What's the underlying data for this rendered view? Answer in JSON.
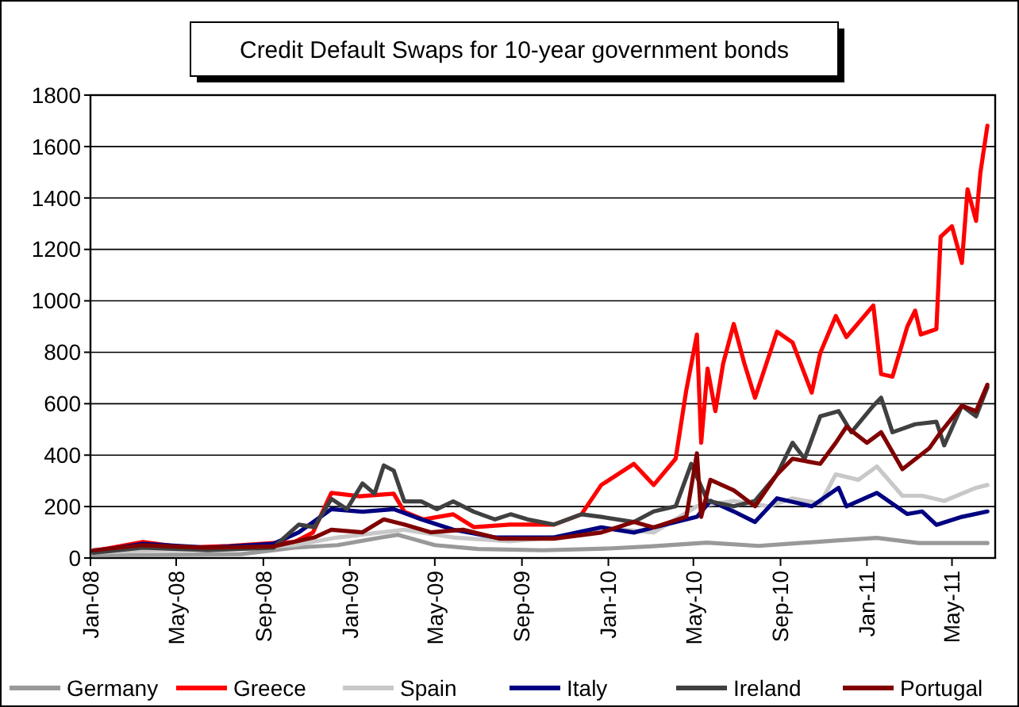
{
  "chart_data": {
    "type": "line",
    "title": "Credit Default Swaps for 10-year government bonds",
    "xlim": [
      "2008-01-01",
      "2011-07-01"
    ],
    "xticks": [
      {
        "value": "2008-01-01",
        "label": "Jan-08"
      },
      {
        "value": "2008-05-01",
        "label": "May-08"
      },
      {
        "value": "2008-09-01",
        "label": "Sep-08"
      },
      {
        "value": "2009-01-01",
        "label": "Jan-09"
      },
      {
        "value": "2009-05-01",
        "label": "May-09"
      },
      {
        "value": "2009-09-01",
        "label": "Sep-09"
      },
      {
        "value": "2010-01-01",
        "label": "Jan-10"
      },
      {
        "value": "2010-05-01",
        "label": "May-10"
      },
      {
        "value": "2010-09-01",
        "label": "Sep-10"
      },
      {
        "value": "2011-01-01",
        "label": "Jan-11"
      },
      {
        "value": "2011-05-01",
        "label": "May-11"
      }
    ],
    "ylim": [
      0,
      1800
    ],
    "yticks": [
      0,
      200,
      400,
      600,
      800,
      1000,
      1200,
      1400,
      1600,
      1800
    ],
    "grid": "y",
    "legend": "bottom",
    "line_style": "solid",
    "marker": "none",
    "series": [
      {
        "name": "Germany",
        "color": "#999999",
        "x": [
          "2008-01-05",
          "2008-04-01",
          "2008-08-01",
          "2008-10-15",
          "2008-12-15",
          "2009-02-15",
          "2009-03-10",
          "2009-05-01",
          "2009-07-01",
          "2009-10-01",
          "2010-01-01",
          "2010-03-01",
          "2010-05-20",
          "2010-08-01",
          "2010-11-20",
          "2011-01-15",
          "2011-03-15",
          "2011-06-20"
        ],
        "values": [
          10,
          12,
          15,
          40,
          50,
          80,
          90,
          50,
          35,
          30,
          37,
          45,
          60,
          47,
          68,
          78,
          58,
          58
        ]
      },
      {
        "name": "Greece",
        "color": "#ff0000",
        "x": [
          "2008-01-05",
          "2008-03-15",
          "2008-05-15",
          "2008-07-15",
          "2008-09-15",
          "2008-10-15",
          "2008-11-10",
          "2008-12-06",
          "2009-01-15",
          "2009-03-04",
          "2009-03-19",
          "2009-04-15",
          "2009-05-27",
          "2009-06-25",
          "2009-08-15",
          "2009-10-16",
          "2009-11-24",
          "2009-12-22",
          "2010-02-06",
          "2010-03-06",
          "2010-04-06",
          "2010-04-21",
          "2010-05-06",
          "2010-05-12",
          "2010-05-21",
          "2010-06-01",
          "2010-06-12",
          "2010-06-27",
          "2010-07-12",
          "2010-07-27",
          "2010-08-27",
          "2010-09-18",
          "2010-10-15",
          "2010-10-27",
          "2010-11-18",
          "2010-12-03",
          "2011-01-10",
          "2011-01-21",
          "2011-02-06",
          "2011-02-27",
          "2011-03-10",
          "2011-03-18",
          "2011-04-09",
          "2011-04-15",
          "2011-05-01",
          "2011-05-15",
          "2011-05-23",
          "2011-06-04",
          "2011-06-10",
          "2011-06-20"
        ],
        "values": [
          27,
          62,
          40,
          47,
          58,
          62,
          99,
          253,
          240,
          250,
          180,
          150,
          170,
          120,
          130,
          130,
          170,
          284,
          366,
          284,
          386,
          653,
          869,
          448,
          736,
          571,
          756,
          910,
          756,
          623,
          880,
          838,
          643,
          797,
          941,
          859,
          982,
          715,
          705,
          900,
          962,
          869,
          890,
          1249,
          1290,
          1147,
          1434,
          1311,
          1496,
          1681
        ]
      },
      {
        "name": "Spain",
        "color": "#c8c8c8",
        "x": [
          "2008-01-05",
          "2008-04-01",
          "2008-08-01",
          "2008-10-15",
          "2008-12-15",
          "2009-02-15",
          "2009-03-19",
          "2009-05-27",
          "2009-08-15",
          "2009-11-24",
          "2009-12-22",
          "2010-03-06",
          "2010-05-06",
          "2010-06-27",
          "2010-08-15",
          "2010-09-18",
          "2010-10-27",
          "2010-11-18",
          "2010-12-20",
          "2011-01-15",
          "2011-02-20",
          "2011-03-20",
          "2011-04-20",
          "2011-06-04",
          "2011-06-20"
        ],
        "values": [
          20,
          30,
          35,
          50,
          80,
          100,
          110,
          80,
          65,
          90,
          119,
          99,
          201,
          222,
          201,
          232,
          212,
          325,
          304,
          356,
          242,
          242,
          222,
          273,
          284
        ]
      },
      {
        "name": "Italy",
        "color": "#000080",
        "x": [
          "2008-01-05",
          "2008-03-15",
          "2008-06-15",
          "2008-09-15",
          "2008-10-21",
          "2008-12-06",
          "2009-01-19",
          "2009-03-04",
          "2009-04-12",
          "2009-05-27",
          "2009-07-25",
          "2009-10-16",
          "2009-12-22",
          "2010-02-06",
          "2010-03-06",
          "2010-05-06",
          "2010-05-25",
          "2010-06-27",
          "2010-07-27",
          "2010-08-27",
          "2010-10-15",
          "2010-11-22",
          "2010-12-03",
          "2011-01-15",
          "2011-02-27",
          "2011-03-20",
          "2011-04-09",
          "2011-05-15",
          "2011-06-20"
        ],
        "values": [
          25,
          55,
          40,
          55,
          100,
          190,
          180,
          190,
          150,
          110,
          80,
          80,
          119,
          99,
          119,
          160,
          222,
          181,
          140,
          232,
          201,
          273,
          201,
          253,
          171,
          181,
          129,
          160,
          181
        ]
      },
      {
        "name": "Ireland",
        "color": "#404040",
        "x": [
          "2008-01-05",
          "2008-03-15",
          "2008-06-15",
          "2008-09-15",
          "2008-10-21",
          "2008-11-12",
          "2008-12-06",
          "2008-12-28",
          "2009-01-19",
          "2009-02-05",
          "2009-02-18",
          "2009-03-04",
          "2009-03-19",
          "2009-04-12",
          "2009-05-04",
          "2009-05-27",
          "2009-06-25",
          "2009-07-25",
          "2009-08-16",
          "2009-09-09",
          "2009-10-16",
          "2009-11-24",
          "2009-12-22",
          "2010-02-06",
          "2010-03-06",
          "2010-04-06",
          "2010-04-28",
          "2010-05-21",
          "2010-06-27",
          "2010-07-27",
          "2010-08-27",
          "2010-09-18",
          "2010-10-05",
          "2010-10-27",
          "2010-11-22",
          "2010-12-10",
          "2011-01-10",
          "2011-01-21",
          "2011-02-06",
          "2011-03-10",
          "2011-04-09",
          "2011-04-20",
          "2011-05-15",
          "2011-06-04",
          "2011-06-20"
        ],
        "values": [
          20,
          40,
          30,
          40,
          130,
          120,
          230,
          190,
          290,
          250,
          360,
          340,
          220,
          220,
          190,
          220,
          180,
          150,
          170,
          150,
          130,
          170,
          160,
          140,
          181,
          201,
          366,
          222,
          201,
          222,
          325,
          448,
          386,
          551,
          571,
          489,
          592,
          623,
          489,
          520,
          530,
          438,
          592,
          551,
          664
        ]
      },
      {
        "name": "Portugal",
        "color": "#800000",
        "x": [
          "2008-01-05",
          "2008-03-15",
          "2008-06-15",
          "2008-09-15",
          "2008-11-12",
          "2008-12-06",
          "2009-01-19",
          "2009-02-18",
          "2009-03-19",
          "2009-04-25",
          "2009-06-10",
          "2009-08-01",
          "2009-10-16",
          "2009-12-22",
          "2010-02-06",
          "2010-03-06",
          "2010-04-21",
          "2010-05-06",
          "2010-05-12",
          "2010-05-25",
          "2010-06-27",
          "2010-07-27",
          "2010-08-27",
          "2010-09-18",
          "2010-10-27",
          "2010-11-18",
          "2010-12-03",
          "2011-01-01",
          "2011-01-21",
          "2011-02-20",
          "2011-03-30",
          "2011-04-15",
          "2011-05-15",
          "2011-06-04",
          "2011-06-20"
        ],
        "values": [
          30,
          50,
          40,
          45,
          80,
          110,
          100,
          150,
          130,
          100,
          110,
          75,
          75,
          99,
          140,
          119,
          160,
          407,
          160,
          304,
          263,
          201,
          325,
          386,
          366,
          448,
          510,
          448,
          489,
          345,
          427,
          489,
          592,
          571,
          674
        ]
      }
    ]
  }
}
